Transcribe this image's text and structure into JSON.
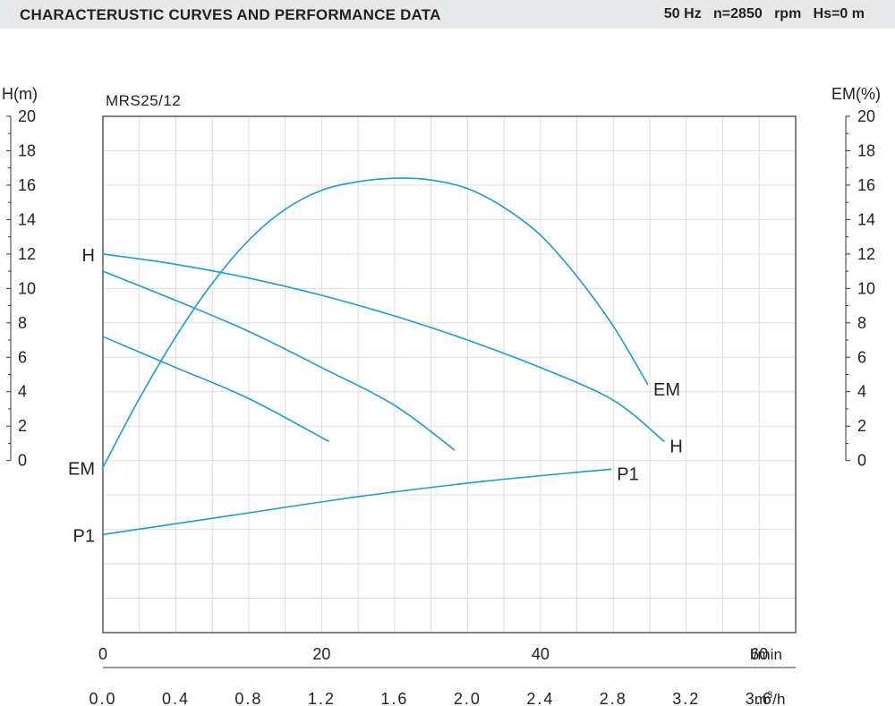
{
  "header": {
    "title": "CHARACTERUSTIC CURVES AND PERFORMANCE DATA",
    "conditions": "50 Hz   n=2850   rpm   Hs=0 m"
  },
  "chart_data": {
    "type": "line",
    "model": "MRS25/12",
    "left_axis": {
      "label": "H(m)",
      "ticks": [
        0,
        2,
        4,
        6,
        8,
        10,
        12,
        14,
        16,
        18,
        20
      ]
    },
    "right_axis": {
      "label": "EM(%)",
      "ticks": [
        0,
        2,
        4,
        6,
        8,
        10,
        12,
        14,
        16,
        18,
        20
      ]
    },
    "x_axis_lmin": {
      "unit": "l/min",
      "ticks": [
        "0",
        "20",
        "40",
        "60"
      ]
    },
    "x_axis_m3h": {
      "unit_main": "m",
      "unit_sup": "3",
      "unit_tail": "/h",
      "ticks": [
        "0.0",
        "0.4",
        "0.8",
        "1.2",
        "1.6",
        "2.0",
        "2.4",
        "2.8",
        "3.2",
        "3.6"
      ]
    },
    "xlim_m3h": [
      0,
      3.8
    ],
    "ylim": [
      -10,
      20
    ],
    "grid": true,
    "colors": {
      "curve": "#1a9cd0",
      "grid": "#dddddd",
      "frame": "#333333",
      "header_bg": "#e6e8ea"
    },
    "series": [
      {
        "key": "h_high",
        "name": "H",
        "end_label": "H",
        "points": [
          [
            0,
            12.0
          ],
          [
            0.4,
            11.4
          ],
          [
            0.8,
            10.6
          ],
          [
            1.2,
            9.6
          ],
          [
            1.6,
            8.4
          ],
          [
            2.0,
            7.0
          ],
          [
            2.4,
            5.4
          ],
          [
            2.8,
            3.5
          ],
          [
            3.08,
            1.1
          ]
        ]
      },
      {
        "key": "h_mid",
        "points": [
          [
            0,
            11.0
          ],
          [
            0.4,
            9.3
          ],
          [
            0.8,
            7.5
          ],
          [
            1.2,
            5.4
          ],
          [
            1.6,
            3.2
          ],
          [
            1.93,
            0.6
          ]
        ]
      },
      {
        "key": "h_low",
        "points": [
          [
            0,
            7.2
          ],
          [
            0.4,
            5.4
          ],
          [
            0.8,
            3.6
          ],
          [
            1.24,
            1.1
          ]
        ]
      },
      {
        "key": "em",
        "name": "EM",
        "end_label": "EM",
        "points": [
          [
            0,
            -0.4
          ],
          [
            0.2,
            3.6
          ],
          [
            0.4,
            7.2
          ],
          [
            0.6,
            10.3
          ],
          [
            0.8,
            12.8
          ],
          [
            1.0,
            14.6
          ],
          [
            1.2,
            15.7
          ],
          [
            1.4,
            16.2
          ],
          [
            1.6,
            16.4
          ],
          [
            1.8,
            16.3
          ],
          [
            2.0,
            15.8
          ],
          [
            2.2,
            14.7
          ],
          [
            2.4,
            13.1
          ],
          [
            2.6,
            10.7
          ],
          [
            2.8,
            7.8
          ],
          [
            2.99,
            4.4
          ]
        ]
      },
      {
        "key": "p1",
        "name": "P1",
        "end_label": "P1",
        "points": [
          [
            0,
            -4.3
          ],
          [
            0.7,
            -3.2
          ],
          [
            1.4,
            -2.1
          ],
          [
            2.1,
            -1.2
          ],
          [
            2.79,
            -0.5
          ]
        ]
      }
    ],
    "left_labels": [
      {
        "text": "H",
        "y": 12.0
      },
      {
        "text": "EM",
        "y": -0.4
      },
      {
        "text": "P1",
        "y": -4.3
      }
    ]
  }
}
